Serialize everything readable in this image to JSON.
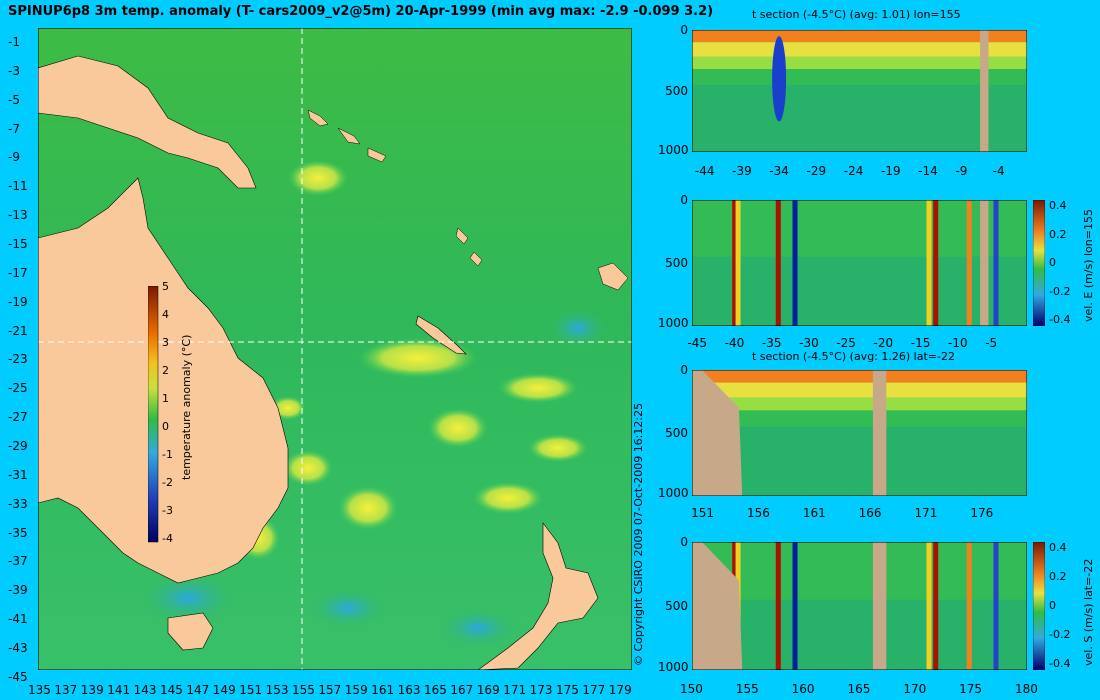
{
  "title": "SPINUP6p8 3m temp. anomaly (T- cars2009_v2@5m) 20-Apr-1999 (min avg max: -2.9 -0.099 3.2)",
  "copyright": "© Copyright CSIRO 2009   07-Oct-2009 16:12:25",
  "colors": {
    "background": "#00ccff",
    "land": "#f9c99b",
    "section_land": "#c7a98a",
    "ocean": "#33bb33"
  },
  "map": {
    "lon_ticks": [
      "135",
      "137",
      "139",
      "141",
      "143",
      "145",
      "147",
      "149",
      "151",
      "153",
      "155",
      "157",
      "159",
      "161",
      "163",
      "165",
      "167",
      "169",
      "171",
      "173",
      "175",
      "177",
      "179"
    ],
    "lat_ticks": [
      "-1",
      "-3",
      "-5",
      "-7",
      "-9",
      "-11",
      "-13",
      "-15",
      "-17",
      "-19",
      "-21",
      "-23",
      "-25",
      "-27",
      "-29",
      "-31",
      "-33",
      "-35",
      "-37",
      "-39",
      "-41",
      "-43",
      "-45"
    ],
    "lon_range": [
      135,
      180
    ],
    "lat_range": [
      -45,
      -0.5
    ],
    "section_lon": 155,
    "section_lat": -22,
    "colorbar": {
      "label": "temperature anomaly (°C)",
      "ticks": [
        "5",
        "4",
        "3",
        "2",
        "1",
        "0",
        "-1",
        "-2",
        "-3",
        "-4"
      ],
      "range": [
        -4,
        5
      ]
    }
  },
  "sections": [
    {
      "title": "t section (-4.5°C) (avg: 1.01) lon=155",
      "x_ticks": [
        "-44",
        "-39",
        "-34",
        "-29",
        "-24",
        "-19",
        "-14",
        "-9",
        "-4"
      ],
      "y_ticks": [
        "0",
        "500",
        "1000"
      ],
      "colorbar": null
    },
    {
      "title": "",
      "x_ticks": [
        "-45",
        "-40",
        "-35",
        "-30",
        "-25",
        "-20",
        "-15",
        "-10",
        "-5"
      ],
      "y_ticks": [
        "0",
        "500",
        "1000"
      ],
      "colorbar": {
        "label": "vel. E (m/s) lon=155",
        "ticks": [
          "0.4",
          "0.2",
          "0",
          "-0.2",
          "-0.4"
        ]
      }
    },
    {
      "title": "t section (-4.5°C) (avg: 1.26) lat=-22",
      "x_ticks": [
        "151",
        "156",
        "161",
        "166",
        "171",
        "176"
      ],
      "y_ticks": [
        "0",
        "500",
        "1000"
      ],
      "colorbar": null
    },
    {
      "title": "",
      "x_ticks": [
        "150",
        "155",
        "160",
        "165",
        "170",
        "175",
        "180"
      ],
      "y_ticks": [
        "0",
        "500",
        "1000"
      ],
      "colorbar": {
        "label": "vel. S (m/s) lat=-22",
        "ticks": [
          "0.4",
          "0.2",
          "0",
          "-0.2",
          "-0.4"
        ]
      }
    }
  ]
}
